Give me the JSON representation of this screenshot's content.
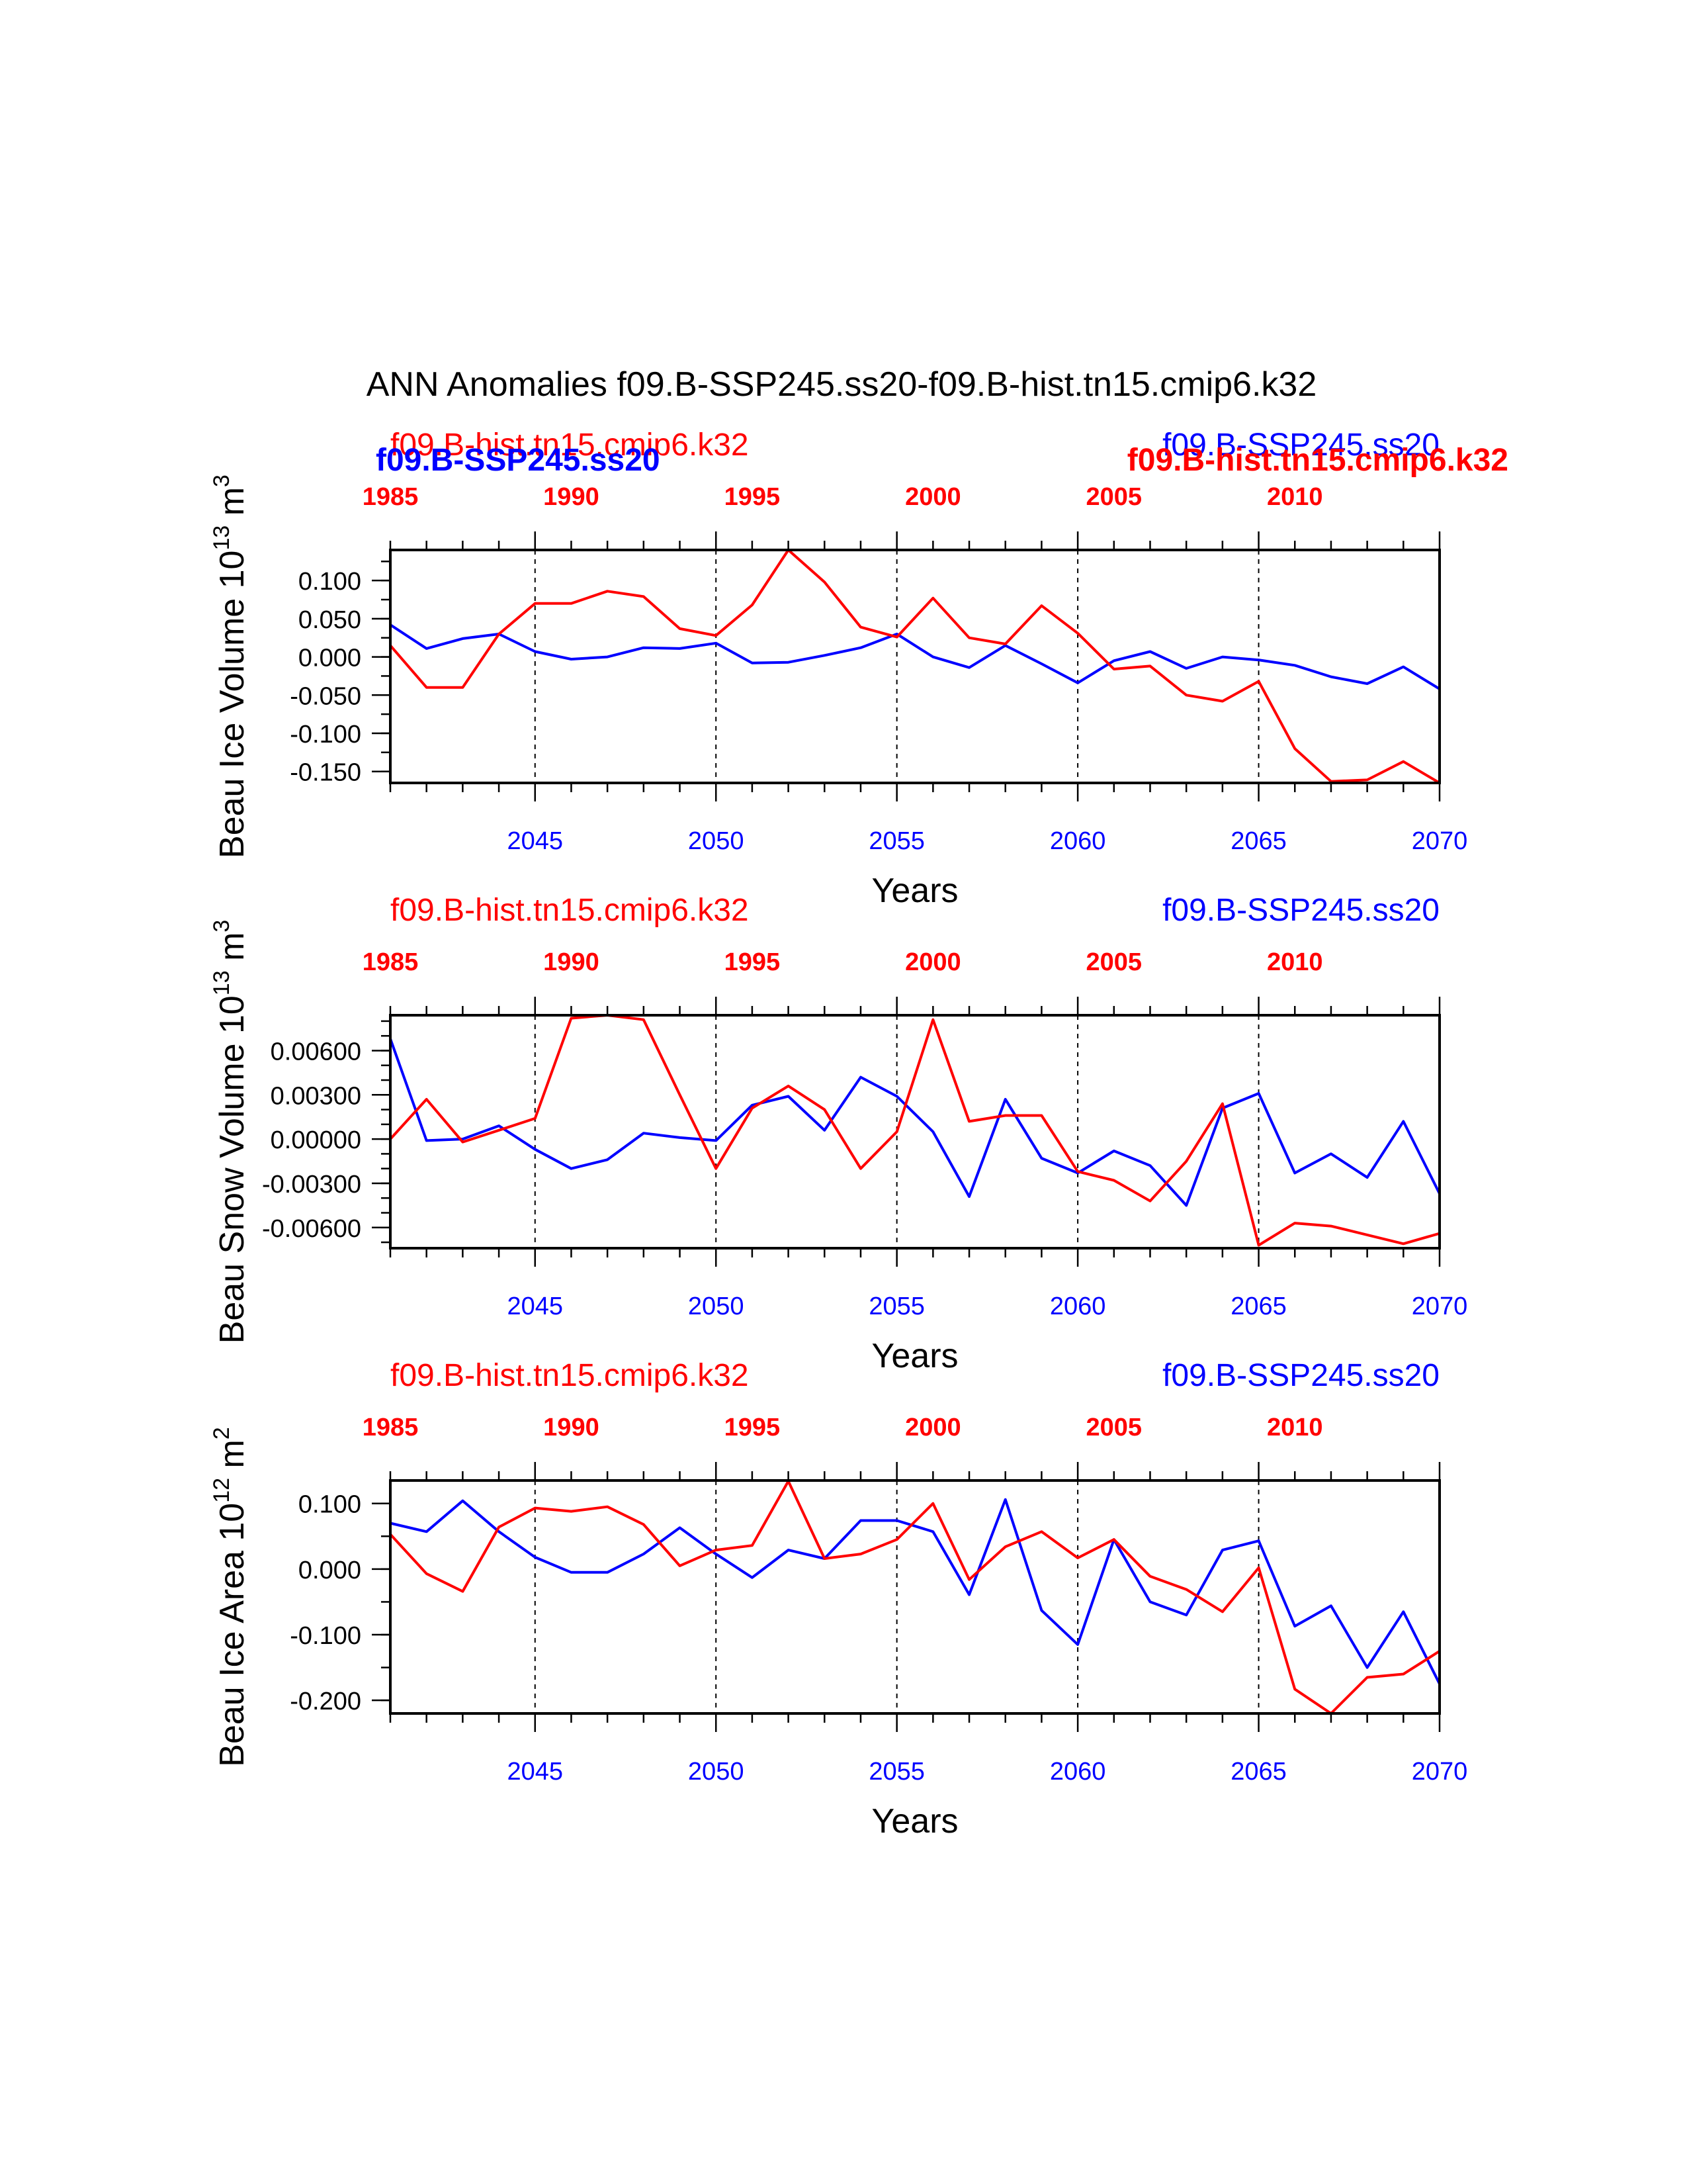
{
  "title": "ANN Anomalies f09.B-SSP245.ss20-f09.B-hist.tn15.cmip6.k32",
  "colors": {
    "ssp": "#0000ff",
    "hist": "#ff0000",
    "axis": "#000000"
  },
  "chart_data": [
    {
      "type": "line",
      "ylabel_main": "Beau Ice Volume 10",
      "ylabel_exp": "13",
      "ylabel_unit": " m",
      "ylabel_uexp": "3",
      "xlabel": "Years",
      "xlim": [
        2041,
        2070
      ],
      "ylim": [
        -0.165,
        0.14
      ],
      "yticks": [
        -0.15,
        -0.1,
        -0.05,
        0.0,
        0.05,
        0.1
      ],
      "ytick_labels": [
        "-0.150",
        "-0.100",
        "-0.050",
        "0.000",
        "0.050",
        "0.100"
      ],
      "yminor_step": 0.025,
      "bottom_ticks": [
        2045,
        2050,
        2055,
        2060,
        2065,
        2070
      ],
      "top_ticks": [
        1985,
        1990,
        1995,
        2000,
        2005,
        2010
      ],
      "top_offset": 56,
      "vlines": [
        2045,
        2050,
        2055,
        2060,
        2065
      ],
      "header_left": "f09.B-hist.tn15.cmip6.k32",
      "header_right": "f09.B-SSP245.ss20",
      "overlap_left": "f09.B-SSP245.ss20",
      "overlap_right": "f09.B-hist.tn15.cmip6.k32",
      "x": [
        2041,
        2042,
        2043,
        2044,
        2045,
        2046,
        2047,
        2048,
        2049,
        2050,
        2051,
        2052,
        2053,
        2054,
        2055,
        2056,
        2057,
        2058,
        2059,
        2060,
        2061,
        2062,
        2063,
        2064,
        2065,
        2066,
        2067,
        2068,
        2069,
        2070
      ],
      "series": [
        {
          "name": "f09.B-SSP245.ss20",
          "color": "#0000ff",
          "values": [
            0.042,
            0.011,
            0.024,
            0.03,
            0.007,
            -0.003,
            0.0,
            0.012,
            0.011,
            0.018,
            -0.008,
            -0.007,
            0.002,
            0.012,
            0.03,
            0.0,
            -0.014,
            0.015,
            -0.009,
            -0.034,
            -0.005,
            0.007,
            -0.015,
            0.0,
            -0.004,
            -0.011,
            -0.026,
            -0.035,
            -0.013,
            -0.042
          ]
        },
        {
          "name": "f09.B-hist.tn15.cmip6.k32",
          "color": "#ff0000",
          "values": [
            0.015,
            -0.04,
            -0.04,
            0.03,
            0.07,
            0.07,
            0.086,
            0.079,
            0.037,
            0.028,
            0.068,
            0.14,
            0.098,
            0.039,
            0.026,
            0.077,
            0.025,
            0.017,
            0.067,
            0.031,
            -0.016,
            -0.012,
            -0.05,
            -0.058,
            -0.032,
            -0.12,
            -0.163,
            -0.161,
            -0.137,
            -0.165
          ]
        }
      ]
    },
    {
      "type": "line",
      "ylabel_main": "Beau Snow Volume 10",
      "ylabel_exp": "13",
      "ylabel_unit": " m",
      "ylabel_uexp": "3",
      "xlabel": "Years",
      "xlim": [
        2041,
        2070
      ],
      "ylim": [
        -0.0074,
        0.0084
      ],
      "yticks": [
        -0.006,
        -0.003,
        0.0,
        0.003,
        0.006
      ],
      "ytick_labels": [
        "-0.00600",
        "-0.00300",
        "0.00000",
        "0.00300",
        "0.00600"
      ],
      "yminor_step": 0.001,
      "bottom_ticks": [
        2045,
        2050,
        2055,
        2060,
        2065,
        2070
      ],
      "top_ticks": [
        1985,
        1990,
        1995,
        2000,
        2005,
        2010
      ],
      "top_offset": 56,
      "vlines": [
        2045,
        2050,
        2055,
        2060,
        2065
      ],
      "header_left": "f09.B-hist.tn15.cmip6.k32",
      "header_right": "f09.B-SSP245.ss20",
      "x": [
        2041,
        2042,
        2043,
        2044,
        2045,
        2046,
        2047,
        2048,
        2049,
        2050,
        2051,
        2052,
        2053,
        2054,
        2055,
        2056,
        2057,
        2058,
        2059,
        2060,
        2061,
        2062,
        2063,
        2064,
        2065,
        2066,
        2067,
        2068,
        2069,
        2070
      ],
      "series": [
        {
          "name": "f09.B-SSP245.ss20",
          "color": "#0000ff",
          "values": [
            0.0068,
            -0.0001,
            0.0,
            0.0009,
            -0.0007,
            -0.002,
            -0.0014,
            0.0004,
            0.0001,
            -0.0001,
            0.0023,
            0.0029,
            0.0006,
            0.0042,
            0.0029,
            0.0005,
            -0.0039,
            0.0027,
            -0.0013,
            -0.0023,
            -0.0008,
            -0.0018,
            -0.0045,
            0.0021,
            0.0031,
            -0.0023,
            -0.001,
            -0.0026,
            0.0012,
            -0.0037
          ]
        },
        {
          "name": "f09.B-hist.tn15.cmip6.k32",
          "color": "#ff0000",
          "values": [
            0.0,
            0.0027,
            -0.0002,
            0.0006,
            0.0014,
            0.0082,
            0.0084,
            0.0081,
            0.003,
            -0.002,
            0.0021,
            0.0036,
            0.002,
            -0.002,
            0.0005,
            0.0081,
            0.0012,
            0.0016,
            0.0016,
            -0.0022,
            -0.0028,
            -0.0042,
            -0.0015,
            0.0024,
            -0.0072,
            -0.0057,
            -0.0059,
            -0.0065,
            -0.0071,
            -0.0064
          ]
        }
      ]
    },
    {
      "type": "line",
      "ylabel_main": "Beau Ice Area 10",
      "ylabel_exp": "12",
      "ylabel_unit": " m",
      "ylabel_uexp": "2",
      "xlabel": "Years",
      "xlim": [
        2041,
        2070
      ],
      "ylim": [
        -0.22,
        0.135
      ],
      "yticks": [
        -0.2,
        -0.1,
        0.0,
        0.1
      ],
      "ytick_labels": [
        "-0.200",
        "-0.100",
        "0.000",
        "0.100"
      ],
      "yminor_step": 0.05,
      "bottom_ticks": [
        2045,
        2050,
        2055,
        2060,
        2065,
        2070
      ],
      "top_ticks": [
        1985,
        1990,
        1995,
        2000,
        2005,
        2010
      ],
      "top_offset": 56,
      "vlines": [
        2045,
        2050,
        2055,
        2060,
        2065
      ],
      "header_left": "f09.B-hist.tn15.cmip6.k32",
      "header_right": "f09.B-SSP245.ss20",
      "x": [
        2041,
        2042,
        2043,
        2044,
        2045,
        2046,
        2047,
        2048,
        2049,
        2050,
        2051,
        2052,
        2053,
        2054,
        2055,
        2056,
        2057,
        2058,
        2059,
        2060,
        2061,
        2062,
        2063,
        2064,
        2065,
        2066,
        2067,
        2068,
        2069,
        2070
      ],
      "series": [
        {
          "name": "f09.B-SSP245.ss20",
          "color": "#0000ff",
          "values": [
            0.07,
            0.057,
            0.104,
            0.057,
            0.018,
            -0.005,
            -0.005,
            0.023,
            0.063,
            0.023,
            -0.013,
            0.029,
            0.016,
            0.074,
            0.074,
            0.057,
            -0.039,
            0.106,
            -0.063,
            -0.115,
            0.045,
            -0.05,
            -0.07,
            0.029,
            0.043,
            -0.087,
            -0.056,
            -0.15,
            -0.065,
            -0.175
          ]
        },
        {
          "name": "f09.B-hist.tn15.cmip6.k32",
          "color": "#ff0000",
          "values": [
            0.053,
            -0.007,
            -0.034,
            0.064,
            0.093,
            0.088,
            0.095,
            0.068,
            0.005,
            0.029,
            0.036,
            0.134,
            0.016,
            0.023,
            0.045,
            0.1,
            -0.016,
            0.034,
            0.057,
            0.017,
            0.045,
            -0.011,
            -0.031,
            -0.065,
            0.002,
            -0.183,
            -0.22,
            -0.165,
            -0.16,
            -0.125
          ]
        }
      ]
    }
  ]
}
